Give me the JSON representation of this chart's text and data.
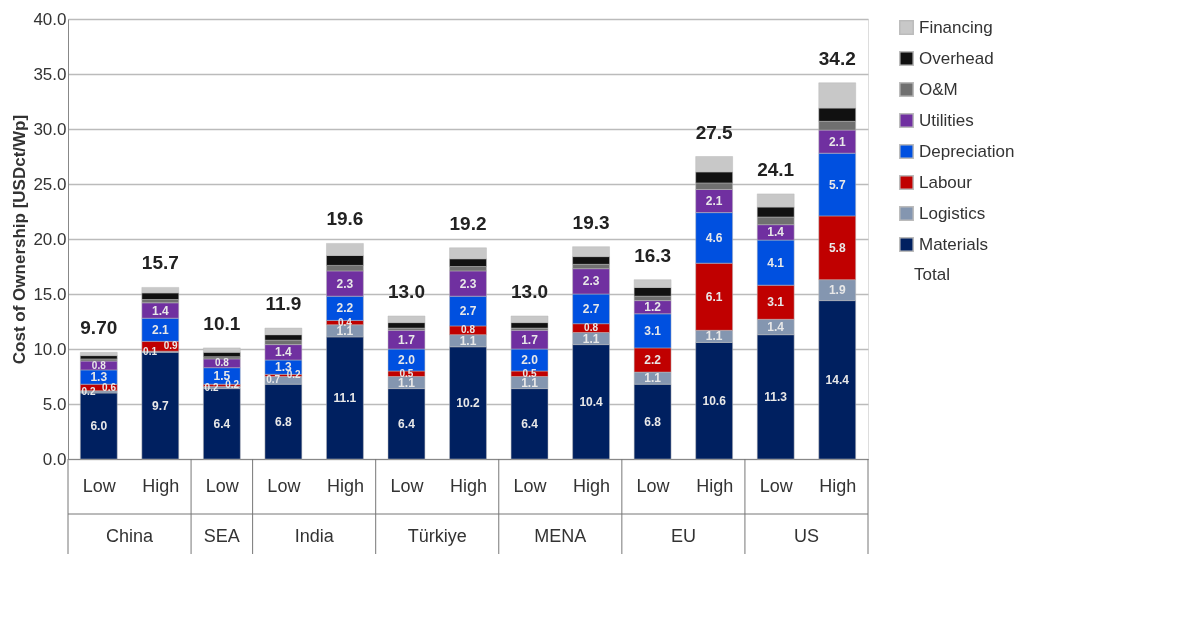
{
  "chart_data": {
    "type": "bar",
    "stacked": true,
    "ylabel": "Cost of Ownership [USDct/Wp]",
    "categories": [
      "Low",
      "High",
      "Low",
      "Low",
      "High",
      "Low",
      "High",
      "Low",
      "High",
      "Low",
      "High",
      "Low",
      "High"
    ],
    "annotations": [
      "China",
      "SEA",
      "India",
      "Türkiye",
      "MENA",
      "EU",
      "US",
      "Total"
    ],
    "ylim": [
      0,
      40
    ],
    "yticks": [
      {
        "value": 0,
        "label": "0.0"
      },
      {
        "value": 5,
        "label": "5.0"
      },
      {
        "value": 10,
        "label": "10.0"
      },
      {
        "value": 15,
        "label": "15.0"
      },
      {
        "value": 20,
        "label": "20.0"
      },
      {
        "value": 25,
        "label": "25.0"
      },
      {
        "value": 30,
        "label": "30.0"
      },
      {
        "value": 35,
        "label": "35.0"
      },
      {
        "value": 40,
        "label": "40.0"
      }
    ],
    "grid": "y",
    "legend": "right",
    "series": [
      {
        "name": "Materials",
        "color": "#002060",
        "values": [
          6.0,
          9.7,
          6.4,
          6.8,
          11.1,
          6.4,
          10.2,
          6.4,
          10.4,
          6.8,
          10.6,
          11.3,
          14.4
        ],
        "value_labels": [
          "6.0",
          "9.7",
          "6.4",
          "6.8",
          "11.1",
          "6.4",
          "10.2",
          "6.4",
          "10.4",
          "6.8",
          "10.6",
          "11.3",
          "14.4"
        ]
      },
      {
        "name": "Logistics",
        "color": "#8496b0",
        "values": [
          0.2,
          0.1,
          0.2,
          0.7,
          1.1,
          1.1,
          1.1,
          1.1,
          1.1,
          1.1,
          1.1,
          1.4,
          1.9
        ],
        "value_labels": [
          "0.2",
          "0.1",
          "0.2",
          "0.7",
          "1.1",
          "1.1",
          "1.1",
          "1.1",
          "1.1",
          "1.1",
          "1.1",
          "1.4",
          "1.9"
        ]
      },
      {
        "name": "Labour",
        "color": "#c00000",
        "values": [
          0.6,
          0.9,
          0.2,
          0.2,
          0.4,
          0.5,
          0.8,
          0.5,
          0.8,
          2.2,
          6.1,
          3.1,
          5.8
        ],
        "value_labels": [
          "0.6",
          "0.9",
          "0.2",
          "0.2",
          "0.4",
          "0.5",
          "0.8",
          "0.5",
          "0.8",
          "2.2",
          "6.1",
          "3.1",
          "5.8"
        ]
      },
      {
        "name": "Depreciation",
        "color": "#0050e0",
        "values": [
          1.3,
          2.1,
          1.5,
          1.3,
          2.2,
          2.0,
          2.7,
          2.0,
          2.7,
          3.1,
          4.6,
          4.1,
          5.7
        ],
        "value_labels": [
          "1.3",
          "2.1",
          "1.5",
          "1.3",
          "2.2",
          "2.0",
          "2.7",
          "2.0",
          "2.7",
          "3.1",
          "4.6",
          "4.1",
          "5.7"
        ]
      },
      {
        "name": "Utilities",
        "color": "#7030a0",
        "values": [
          0.8,
          1.4,
          0.8,
          1.4,
          2.3,
          1.7,
          2.3,
          1.7,
          2.3,
          1.2,
          2.1,
          1.4,
          2.1
        ],
        "value_labels": [
          "0.8",
          "1.4",
          "0.8",
          "1.4",
          "2.3",
          "1.7",
          "2.3",
          "1.7",
          "2.3",
          "1.2",
          "2.1",
          "1.4",
          "2.1"
        ]
      },
      {
        "name": "O&M",
        "color": "#707070",
        "values": [
          0.2,
          0.3,
          0.2,
          0.4,
          0.5,
          0.2,
          0.4,
          0.2,
          0.4,
          0.4,
          0.6,
          0.7,
          0.8
        ]
      },
      {
        "name": "Overhead",
        "color": "#111111",
        "values": [
          0.3,
          0.6,
          0.4,
          0.5,
          0.9,
          0.5,
          0.7,
          0.5,
          0.7,
          0.8,
          1.0,
          0.9,
          1.2
        ]
      },
      {
        "name": "Financing",
        "color": "#c8c8c8",
        "values": [
          0.3,
          0.5,
          0.4,
          0.6,
          1.1,
          0.6,
          1.0,
          0.6,
          0.9,
          0.7,
          1.4,
          1.2,
          2.3
        ]
      }
    ],
    "totals": [
      "9.70",
      "15.7",
      "10.1",
      "11.9",
      "19.6",
      "13.0",
      "19.2",
      "13.0",
      "19.3",
      "16.3",
      "27.5",
      "24.1",
      "34.2"
    ]
  }
}
